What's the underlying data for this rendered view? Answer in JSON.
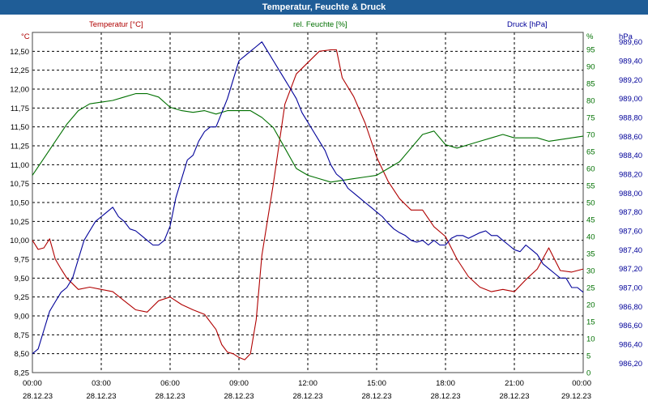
{
  "window_title": "Temperatur, Feuchte & Druck",
  "chart_data": {
    "type": "line",
    "title": "Temperatur, Feuchte & Druck",
    "colors": {
      "temp": "#b00000",
      "hum": "#007000",
      "press": "#000099",
      "grid": "#000000",
      "frame": "#444444"
    },
    "x_labels": [
      {
        "time": "00:00",
        "date": "28.12.23"
      },
      {
        "time": "03:00",
        "date": "28.12.23"
      },
      {
        "time": "06:00",
        "date": "28.12.23"
      },
      {
        "time": "09:00",
        "date": "28.12.23"
      },
      {
        "time": "12:00",
        "date": "28.12.23"
      },
      {
        "time": "15:00",
        "date": "28.12.23"
      },
      {
        "time": "18:00",
        "date": "28.12.23"
      },
      {
        "time": "21:00",
        "date": "28.12.23"
      },
      {
        "time": "00:00",
        "date": "29.12.23"
      }
    ],
    "xlim": [
      0,
      24
    ],
    "axes": {
      "temp": {
        "label": "Temperatur [°C]",
        "unit": "°C",
        "ylim": [
          8.25,
          12.75
        ],
        "ticks": [
          "8,25",
          "8,50",
          "8,75",
          "9,00",
          "9,25",
          "9,50",
          "9,75",
          "10,00",
          "10,25",
          "10,50",
          "10,75",
          "11,00",
          "11,25",
          "11,50",
          "11,75",
          "12,00",
          "12,25",
          "12,50"
        ]
      },
      "hum": {
        "label": "rel. Feuchte [%]",
        "unit": "%",
        "ylim": [
          0,
          100
        ],
        "ticks": [
          "0",
          "5",
          "10",
          "15",
          "20",
          "25",
          "30",
          "35",
          "40",
          "45",
          "50",
          "55",
          "60",
          "65",
          "70",
          "75",
          "80",
          "85",
          "90",
          "95"
        ]
      },
      "press": {
        "label": "Druck [hPa]",
        "unit": "hPa",
        "ylim": [
          986.1,
          989.7
        ],
        "ticks": [
          "986,20",
          "986,40",
          "986,60",
          "986,80",
          "987,00",
          "987,20",
          "987,40",
          "987,60",
          "987,80",
          "988,00",
          "988,20",
          "988,40",
          "988,60",
          "988,80",
          "989,00",
          "989,20",
          "989,40",
          "989,60"
        ]
      }
    },
    "series": [
      {
        "name": "Temperatur",
        "axis": "temp",
        "x": [
          0,
          0.25,
          0.5,
          0.75,
          1,
          1.25,
          1.5,
          2,
          2.5,
          3,
          3.5,
          4,
          4.5,
          5,
          5.5,
          6,
          6.5,
          7,
          7.5,
          8,
          8.25,
          8.5,
          8.75,
          9,
          9.25,
          9.5,
          9.75,
          10,
          10.5,
          11,
          11.5,
          12,
          12.5,
          13,
          13.25,
          13.5,
          14,
          14.5,
          15,
          15.5,
          16,
          16.5,
          17,
          17.5,
          18,
          18.5,
          19,
          19.5,
          20,
          20.5,
          21,
          21.5,
          22,
          22.5,
          23,
          23.5,
          24
        ],
        "y": [
          10.0,
          9.88,
          9.9,
          10.02,
          9.75,
          9.62,
          9.5,
          9.35,
          9.38,
          9.35,
          9.32,
          9.2,
          9.08,
          9.05,
          9.2,
          9.25,
          9.15,
          9.08,
          9.02,
          8.82,
          8.62,
          8.52,
          8.5,
          8.45,
          8.42,
          8.5,
          8.95,
          9.8,
          10.75,
          11.8,
          12.2,
          12.35,
          12.5,
          12.52,
          12.52,
          12.15,
          11.9,
          11.55,
          11.1,
          10.78,
          10.55,
          10.4,
          10.4,
          10.18,
          10.05,
          9.75,
          9.52,
          9.38,
          9.32,
          9.35,
          9.32,
          9.48,
          9.62,
          9.9,
          9.6,
          9.58,
          9.62
        ]
      },
      {
        "name": "rel. Feuchte",
        "axis": "hum",
        "x": [
          0,
          0.5,
          1,
          1.5,
          2,
          2.5,
          3,
          3.5,
          4,
          4.5,
          5,
          5.5,
          6,
          6.5,
          7,
          7.5,
          8,
          8.5,
          9,
          9.5,
          10,
          10.5,
          11,
          11.5,
          12,
          12.5,
          13,
          13.5,
          14,
          14.5,
          15,
          15.5,
          16,
          16.5,
          17,
          17.5,
          18,
          18.5,
          19,
          19.5,
          20,
          20.5,
          21,
          21.5,
          22,
          22.5,
          23,
          23.5,
          24
        ],
        "y": [
          58,
          63,
          68,
          73,
          77,
          79,
          79.5,
          80,
          81,
          82,
          82,
          81,
          78,
          77,
          76.5,
          77,
          76,
          77,
          77,
          77,
          75,
          72,
          66,
          60,
          58,
          57,
          56,
          56.5,
          57,
          57.5,
          58,
          60,
          62,
          66,
          70,
          71,
          67,
          66,
          67,
          68,
          69,
          70,
          69,
          69,
          69,
          68,
          68.5,
          69,
          69.5
        ]
      },
      {
        "name": "Druck",
        "axis": "press",
        "x": [
          0,
          0.25,
          0.5,
          0.75,
          1,
          1.25,
          1.5,
          1.75,
          2,
          2.25,
          2.5,
          2.75,
          3,
          3.25,
          3.5,
          3.75,
          4,
          4.25,
          4.5,
          4.75,
          5,
          5.25,
          5.5,
          5.75,
          6,
          6.25,
          6.5,
          6.75,
          7,
          7.25,
          7.5,
          7.75,
          8,
          8.25,
          8.5,
          8.75,
          9,
          9.25,
          9.5,
          9.75,
          10,
          10.25,
          10.5,
          10.75,
          11,
          11.25,
          11.5,
          11.75,
          12,
          12.25,
          12.5,
          12.75,
          13,
          13.25,
          13.5,
          13.75,
          14,
          14.25,
          14.5,
          14.75,
          15,
          15.25,
          15.5,
          15.75,
          16,
          16.25,
          16.5,
          16.75,
          17,
          17.25,
          17.5,
          17.75,
          18,
          18.25,
          18.5,
          18.75,
          19,
          19.25,
          19.5,
          19.75,
          20,
          20.25,
          20.5,
          20.75,
          21,
          21.25,
          21.5,
          21.75,
          22,
          22.25,
          22.5,
          22.75,
          23,
          23.25,
          23.5,
          23.75,
          24
        ],
        "y": [
          986.3,
          986.35,
          986.55,
          986.75,
          986.85,
          986.95,
          987.0,
          987.1,
          987.3,
          987.5,
          987.6,
          987.7,
          987.75,
          987.8,
          987.85,
          987.75,
          987.7,
          987.62,
          987.6,
          987.55,
          987.5,
          987.45,
          987.45,
          987.5,
          987.65,
          987.95,
          988.15,
          988.35,
          988.4,
          988.55,
          988.65,
          988.7,
          988.7,
          988.85,
          989.0,
          989.2,
          989.4,
          989.45,
          989.5,
          989.55,
          989.6,
          989.5,
          989.4,
          989.3,
          989.2,
          989.1,
          989.0,
          988.85,
          988.75,
          988.65,
          988.55,
          988.45,
          988.3,
          988.2,
          988.15,
          988.05,
          988.0,
          987.95,
          987.9,
          987.85,
          987.8,
          987.75,
          987.68,
          987.62,
          987.58,
          987.55,
          987.5,
          987.48,
          987.5,
          987.45,
          987.5,
          987.45,
          987.45,
          987.52,
          987.55,
          987.55,
          987.52,
          987.55,
          987.58,
          987.6,
          987.55,
          987.55,
          987.5,
          987.45,
          987.4,
          987.38,
          987.45,
          987.4,
          987.35,
          987.25,
          987.2,
          987.15,
          987.1,
          987.1,
          987.0,
          987.0,
          986.95
        ]
      }
    ]
  }
}
